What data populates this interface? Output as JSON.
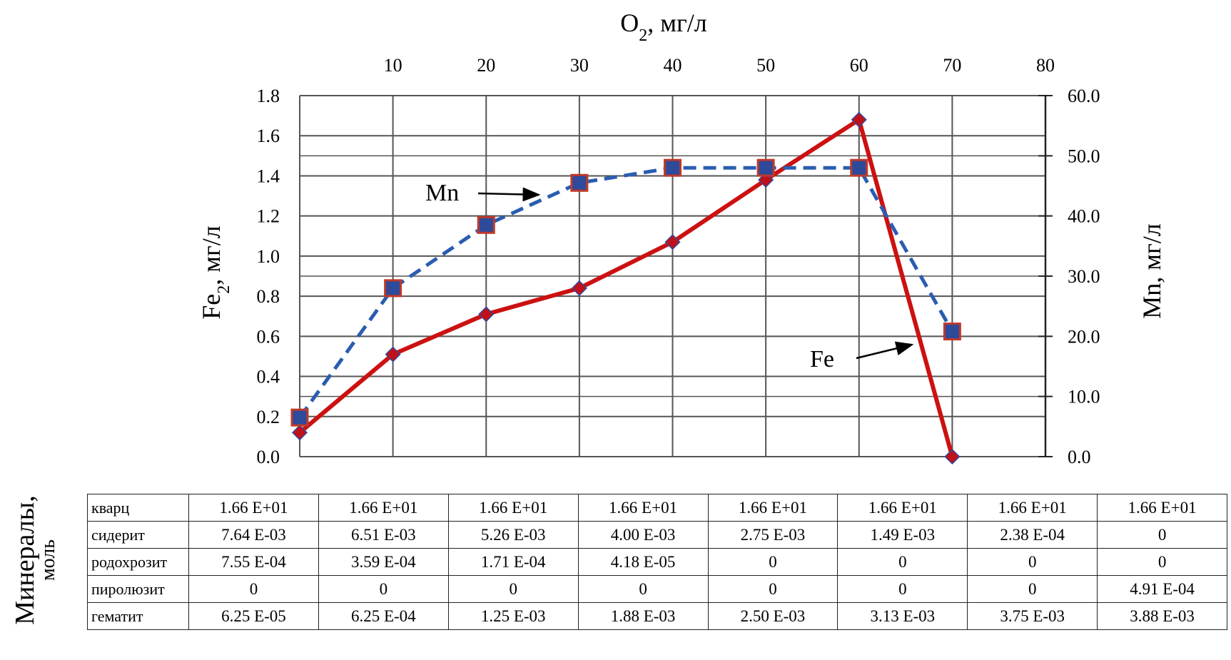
{
  "chart_data": {
    "type": "line",
    "top_axis": {
      "label_main": "O",
      "label_sub": "2",
      "label_tail": ", мг/л",
      "ticks": [
        "10",
        "20",
        "30",
        "40",
        "50",
        "60",
        "70",
        "80"
      ],
      "range": [
        0,
        80
      ]
    },
    "left_axis": {
      "label_main": "Fe",
      "label_sub": "2",
      "label_tail": ", мг/л",
      "ticks": [
        "0.0",
        "0.2",
        "0.4",
        "0.6",
        "0.8",
        "1.0",
        "1.2",
        "1.4",
        "1.6",
        "1.8"
      ],
      "range": [
        0,
        1.8
      ]
    },
    "right_axis": {
      "label": "Mn, мг/л",
      "ticks": [
        "0.0",
        "10.0",
        "20.0",
        "30.0",
        "40.0",
        "50.0",
        "60.0"
      ],
      "range": [
        0,
        60
      ]
    },
    "grid": true,
    "series": [
      {
        "name": "Fe",
        "axis": "left",
        "color": "#cc1111",
        "marker": "diamond",
        "style": "solid",
        "x": [
          0,
          10,
          20,
          30,
          40,
          50,
          60,
          70
        ],
        "y": [
          0.12,
          0.51,
          0.71,
          0.84,
          1.07,
          1.38,
          1.68,
          0.0
        ]
      },
      {
        "name": "Mn",
        "axis": "right",
        "color": "#2a5db0",
        "marker": "square",
        "style": "dashed",
        "x": [
          0,
          10,
          20,
          30,
          40,
          50,
          60,
          70
        ],
        "y": [
          6.5,
          28.0,
          38.5,
          45.5,
          48.0,
          48.0,
          48.0,
          20.8
        ]
      }
    ],
    "annotations": [
      {
        "text": "Mn",
        "target_series": "Mn"
      },
      {
        "text": "Fe",
        "target_series": "Fe"
      }
    ]
  },
  "table": {
    "title_line1": "Минералы,",
    "title_line2": "моль",
    "rows": [
      {
        "name": "кварц",
        "values": [
          "1.66 E+01",
          "1.66 E+01",
          "1.66 E+01",
          "1.66 E+01",
          "1.66 E+01",
          "1.66 E+01",
          "1.66 E+01",
          "1.66 E+01"
        ]
      },
      {
        "name": "сидерит",
        "values": [
          "7.64 E-03",
          "6.51 E-03",
          "5.26 E-03",
          "4.00 E-03",
          "2.75 E-03",
          "1.49 E-03",
          "2.38 E-04",
          "0"
        ]
      },
      {
        "name": "родохрозит",
        "values": [
          "7.55 E-04",
          "3.59 E-04",
          "1.71 E-04",
          "4.18 E-05",
          "0",
          "0",
          "0",
          "0"
        ]
      },
      {
        "name": "пиролюзит",
        "values": [
          "0",
          "0",
          "0",
          "0",
          "0",
          "0",
          "0",
          "4.91 E-04"
        ]
      },
      {
        "name": "гематит",
        "values": [
          "6.25 E-05",
          "6.25 E-04",
          "1.25 E-03",
          "1.88 E-03",
          "2.50 E-03",
          "3.13 E-03",
          "3.75 E-03",
          "3.88 E-03"
        ]
      }
    ]
  }
}
